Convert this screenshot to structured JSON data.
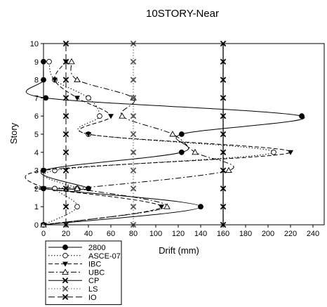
{
  "chart_data": {
    "type": "line",
    "title": "10STORY-Near",
    "xlabel": "Drift (mm)",
    "ylabel": "Story",
    "xlim": [
      0,
      250
    ],
    "ylim": [
      0,
      10
    ],
    "x_ticks": [
      "0",
      "20",
      "40",
      "60",
      "80",
      "100",
      "120",
      "140",
      "160",
      "180",
      "200",
      "220",
      "240"
    ],
    "y_ticks": [
      "0",
      "1",
      "2",
      "3",
      "4",
      "5",
      "6",
      "7",
      "8",
      "9",
      "10"
    ],
    "grid": false,
    "legend_position": "bottom-left",
    "series": [
      {
        "name": "2800",
        "color": "#000000",
        "marker": "filled-circle",
        "dash": "solid",
        "x": [
          0,
          140,
          0,
          40,
          0,
          123,
          123,
          230,
          2,
          0,
          0
        ],
        "y": [
          0,
          1,
          2,
          2,
          3,
          4,
          5,
          6,
          7,
          8,
          9
        ]
      },
      {
        "name": "ASCE-07",
        "color": "#000000",
        "marker": "open-circle",
        "dash": "dotted",
        "x": [
          0,
          30,
          10,
          30,
          10,
          205,
          40,
          50,
          40,
          10,
          5
        ],
        "y": [
          0,
          1,
          2,
          2,
          3,
          4,
          5,
          6,
          7,
          8,
          9
        ]
      },
      {
        "name": "IBC",
        "color": "#000000",
        "marker": "filled-triangle-down",
        "dash": "dashed",
        "x": [
          0,
          105,
          0,
          0,
          0,
          220,
          40,
          60,
          30,
          10,
          20
        ],
        "y": [
          0,
          1,
          2,
          2,
          3,
          4,
          5,
          6,
          7,
          8,
          9
        ]
      },
      {
        "name": "UBC",
        "color": "#000000",
        "marker": "open-triangle-up",
        "dash": "dash-dot",
        "x": [
          0,
          110,
          30,
          30,
          165,
          135,
          115,
          70,
          80,
          30,
          25
        ],
        "y": [
          0,
          1,
          2,
          2,
          3,
          4,
          5,
          6,
          7,
          8,
          9
        ]
      },
      {
        "name": "CP",
        "color": "#000000",
        "marker": "x",
        "dash": "solid",
        "x": [
          160,
          160,
          160,
          160,
          160,
          160,
          160,
          160,
          160,
          160,
          160
        ],
        "y": [
          0,
          1,
          2,
          3,
          4,
          5,
          6,
          7,
          8,
          9,
          10
        ]
      },
      {
        "name": "LS",
        "color": "#555555",
        "marker": "x",
        "dash": "dotted",
        "x": [
          80,
          80,
          80,
          80,
          80,
          80,
          80,
          80,
          80,
          80,
          80
        ],
        "y": [
          0,
          1,
          2,
          3,
          4,
          5,
          6,
          7,
          8,
          9,
          10
        ]
      },
      {
        "name": "IO",
        "color": "#000000",
        "marker": "x",
        "dash": "long-dash",
        "x": [
          20,
          20,
          20,
          20,
          20,
          20,
          20,
          20,
          20,
          20,
          20
        ],
        "y": [
          0,
          1,
          2,
          3,
          4,
          5,
          6,
          7,
          8,
          9,
          10
        ]
      }
    ]
  }
}
